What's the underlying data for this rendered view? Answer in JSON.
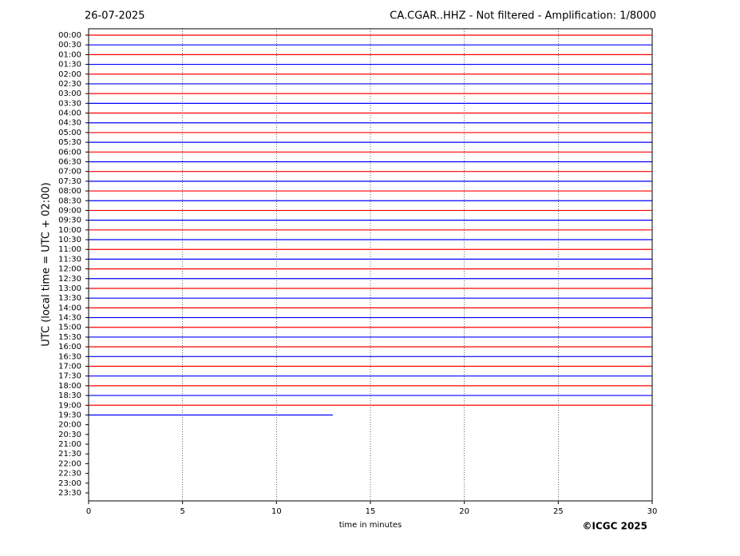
{
  "chart_data": {
    "type": "helicorder",
    "date": "26-07-2025",
    "title": "CA.CGAR..HHZ - Not filtered - Amplification: 1/8000",
    "y_label": "UTC (local time = UTC + 02:00)",
    "x_label": "time in minutes",
    "credit": "©ICGC 2025",
    "xlim": [
      0,
      30
    ],
    "xticks": [
      0,
      5,
      10,
      15,
      20,
      25,
      30
    ],
    "grid": true,
    "colors": [
      "#ff0000",
      "#0000ff"
    ],
    "categories": [
      "00:00",
      "00:30",
      "01:00",
      "01:30",
      "02:00",
      "02:30",
      "03:00",
      "03:30",
      "04:00",
      "04:30",
      "05:00",
      "05:30",
      "06:00",
      "06:30",
      "07:00",
      "07:30",
      "08:00",
      "08:30",
      "09:00",
      "09:30",
      "10:00",
      "10:30",
      "11:00",
      "11:30",
      "12:00",
      "12:30",
      "13:00",
      "13:30",
      "14:00",
      "14:30",
      "15:00",
      "15:30",
      "16:00",
      "16:30",
      "17:00",
      "17:30",
      "18:00",
      "18:30",
      "19:00",
      "19:30",
      "20:00",
      "20:30",
      "21:00",
      "21:30",
      "22:00",
      "22:30",
      "23:00",
      "23:30"
    ],
    "values": [
      30,
      30,
      30,
      30,
      30,
      30,
      30,
      30,
      30,
      30,
      30,
      30,
      30,
      30,
      30,
      30,
      30,
      30,
      30,
      30,
      30,
      30,
      30,
      30,
      30,
      30,
      30,
      30,
      30,
      30,
      30,
      30,
      30,
      30,
      30,
      30,
      30,
      30,
      30,
      13,
      null,
      null,
      null,
      null,
      null,
      null,
      null,
      null
    ]
  }
}
